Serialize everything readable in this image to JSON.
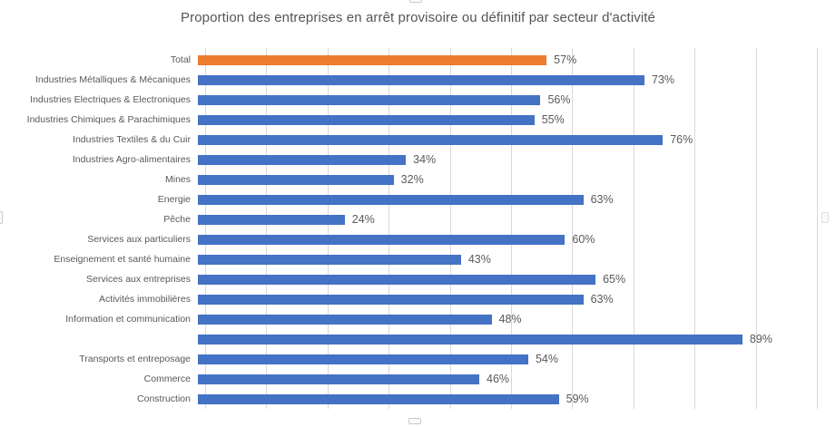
{
  "chart_data": {
    "type": "bar",
    "orientation": "horizontal",
    "title": "Proportion des entreprises en arrêt provisoire ou définitif par secteur d'activité",
    "xlabel": "",
    "ylabel": "",
    "xlim": [
      0,
      100
    ],
    "grid": true,
    "legend": false,
    "axis": {
      "min": 0,
      "max": 100,
      "step": 10,
      "tick_labels_visible": false
    },
    "categories": [
      "Total",
      "Industries Métalliques & Mécaniques",
      "Industries Electriques & Electroniques",
      "Industries Chimiques & Parachimiques",
      "Industries Textiles & du Cuir",
      "Industries Agro-alimentaires",
      "Mines",
      "Energie",
      "Pêche",
      "Services aux particuliers",
      "Enseignement et santé humaine",
      "Services aux entreprises",
      "Activités immobilières",
      "Information et communication",
      "",
      "Transports et entreposage",
      "Commerce",
      "Construction"
    ],
    "values": [
      57,
      73,
      56,
      55,
      76,
      34,
      32,
      63,
      24,
      60,
      43,
      65,
      63,
      48,
      89,
      54,
      46,
      59
    ],
    "value_labels": [
      "57%",
      "73%",
      "56%",
      "55%",
      "76%",
      "34%",
      "32%",
      "63%",
      "24%",
      "60%",
      "43%",
      "65%",
      "63%",
      "48%",
      "89%",
      "54%",
      "46%",
      "59%"
    ],
    "highlight_index": 0
  },
  "colors": {
    "bar_default": "#4472C4",
    "bar_highlight": "#ED7D31",
    "gridline": "#D9D9D9",
    "label_text": "#595959",
    "title_text": "#555555",
    "background": "#FFFFFF"
  }
}
